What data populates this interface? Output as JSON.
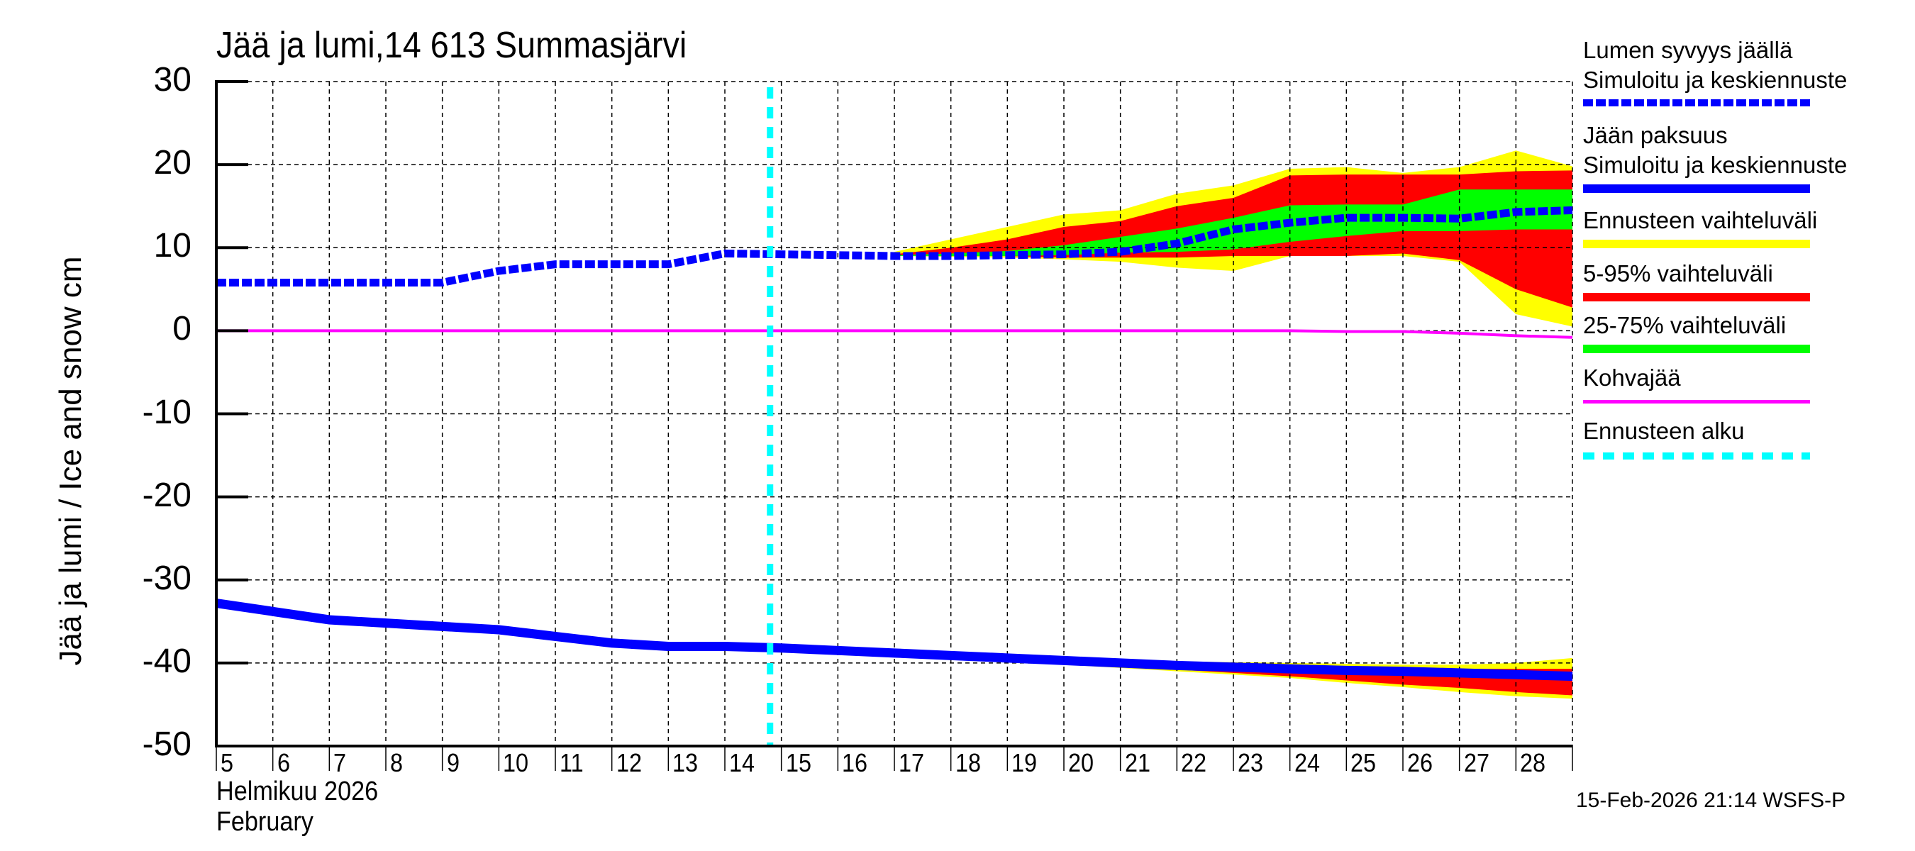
{
  "title": "Jää ja lumi,14 613 Summasjärvi",
  "footer": "15-Feb-2026 21:14 WSFS-P",
  "x_axis": {
    "month_fi": "Helmikuu  2026",
    "month_en": "February"
  },
  "y_axis": {
    "label": "Jää ja lumi / Ice and snow    cm"
  },
  "legend": [
    {
      "label": "Lumen syvyys jäällä\nSimuloitu ja keskiennuste",
      "line1": "Lumen syvyys jäällä",
      "line2": "Simuloitu ja keskiennuste",
      "color": "#0000ff",
      "style": "dashed"
    },
    {
      "label": "Jään paksuus\nSimuloitu ja keskiennuste",
      "line1": "Jään paksuus",
      "line2": "Simuloitu ja keskiennuste",
      "color": "#0000ff",
      "style": "solid"
    },
    {
      "line1": "Ennusteen vaihteluväli",
      "color": "#ffff00",
      "style": "solid"
    },
    {
      "line1": "5-95% vaihteluväli",
      "color": "#ff0000",
      "style": "solid"
    },
    {
      "line1": "25-75% vaihteluväli",
      "color": "#00ff00",
      "style": "solid"
    },
    {
      "line1": "Kohvajää",
      "color": "#ff00ff",
      "style": "thin"
    },
    {
      "line1": "Ennusteen alku",
      "color": "#00ffff",
      "style": "dotted"
    }
  ],
  "chart_data": {
    "type": "line",
    "title": "Jää ja lumi,14 613 Summasjärvi",
    "xlabel": "Helmikuu 2026 / February",
    "ylabel": "Jää ja lumi / Ice and snow cm",
    "xlim": [
      5,
      29
    ],
    "ylim": [
      -50,
      30
    ],
    "x_ticks": [
      5,
      6,
      7,
      8,
      9,
      10,
      11,
      12,
      13,
      14,
      15,
      16,
      17,
      18,
      19,
      20,
      21,
      22,
      23,
      24,
      25,
      26,
      27,
      28
    ],
    "y_ticks": [
      30,
      20,
      10,
      0,
      -10,
      -20,
      -30,
      -40,
      -50
    ],
    "grid": true,
    "forecast_start": 14.8,
    "series": [
      {
        "name": "Lumen syvyys jäällä (snow depth on ice), simulated & mean forecast",
        "x": [
          5,
          6,
          7,
          8,
          9,
          10,
          11,
          12,
          13,
          14,
          15,
          16,
          17,
          18,
          19,
          20,
          21,
          22,
          23,
          24,
          25,
          26,
          27,
          28,
          29
        ],
        "values": [
          5.8,
          5.8,
          5.8,
          5.8,
          5.8,
          7.2,
          8.0,
          8.0,
          8.0,
          9.3,
          9.2,
          9.1,
          9.0,
          9.0,
          9.1,
          9.2,
          9.5,
          10.5,
          12.2,
          13.0,
          13.6,
          13.6,
          13.5,
          14.3,
          14.5
        ]
      },
      {
        "name": "Jään paksuus (ice thickness, plotted negative), simulated & mean forecast",
        "x": [
          5,
          6,
          7,
          8,
          9,
          10,
          11,
          12,
          13,
          14,
          15,
          16,
          17,
          18,
          19,
          20,
          21,
          22,
          23,
          24,
          25,
          26,
          27,
          28,
          29
        ],
        "values": [
          -32.8,
          -33.8,
          -34.8,
          -35.2,
          -35.6,
          -36.0,
          -36.8,
          -37.6,
          -38.0,
          -38.0,
          -38.2,
          -38.5,
          -38.8,
          -39.1,
          -39.4,
          -39.7,
          -40.0,
          -40.3,
          -40.5,
          -40.7,
          -40.9,
          -41.0,
          -41.2,
          -41.4,
          -41.6
        ]
      },
      {
        "name": "Kohvajää (slush ice)",
        "x": [
          5,
          24,
          25,
          26,
          27,
          28,
          29
        ],
        "values": [
          0,
          0,
          -0.1,
          -0.1,
          -0.3,
          -0.6,
          -0.8
        ]
      }
    ],
    "bands": {
      "snow": {
        "x": [
          17,
          18,
          19,
          20,
          21,
          22,
          23,
          24,
          25,
          26,
          27,
          28,
          29
        ],
        "full_range_upper": [
          9.5,
          11.0,
          12.5,
          14.0,
          14.5,
          16.5,
          17.5,
          19.5,
          19.7,
          19.0,
          19.7,
          21.7,
          19.8
        ],
        "full_range_lower": [
          9.0,
          8.9,
          8.8,
          8.6,
          8.3,
          7.6,
          7.2,
          9.0,
          9.0,
          9.0,
          8.3,
          2.0,
          0.5
        ],
        "p95": [
          9.2,
          10.0,
          11.0,
          12.5,
          13.2,
          15.0,
          16.0,
          18.7,
          18.8,
          18.8,
          18.8,
          19.2,
          19.3
        ],
        "p05": [
          9.0,
          9.0,
          9.0,
          8.8,
          8.8,
          8.8,
          9.0,
          9.0,
          9.0,
          9.3,
          8.5,
          5.0,
          2.8
        ],
        "p75": [
          9.1,
          9.3,
          9.6,
          10.3,
          11.3,
          12.3,
          13.6,
          15.1,
          15.2,
          15.2,
          17.0,
          17.0,
          17.0
        ],
        "p25": [
          9.0,
          9.0,
          9.0,
          9.1,
          9.4,
          9.5,
          9.8,
          10.7,
          11.4,
          12.0,
          12.0,
          12.2,
          12.2
        ]
      },
      "ice": {
        "x": [
          17,
          18,
          19,
          20,
          21,
          22,
          23,
          24,
          25,
          26,
          27,
          28,
          29
        ],
        "full_range_upper": [
          -38.6,
          -38.9,
          -39.1,
          -39.3,
          -39.6,
          -39.8,
          -39.9,
          -40.0,
          -40.1,
          -40.2,
          -40.2,
          -40.0,
          -39.4
        ],
        "full_range_lower": [
          -39.0,
          -39.4,
          -39.8,
          -40.2,
          -40.6,
          -41.0,
          -41.4,
          -41.8,
          -42.4,
          -42.9,
          -43.5,
          -44.0,
          -44.3
        ],
        "p95": [
          -38.7,
          -39.0,
          -39.2,
          -39.5,
          -39.8,
          -40.0,
          -40.2,
          -40.4,
          -40.5,
          -40.6,
          -40.7,
          -40.7,
          -40.7
        ],
        "p05": [
          -38.9,
          -39.3,
          -39.7,
          -40.0,
          -40.4,
          -40.8,
          -41.2,
          -41.6,
          -42.1,
          -42.6,
          -43.0,
          -43.5,
          -43.9
        ]
      }
    }
  }
}
